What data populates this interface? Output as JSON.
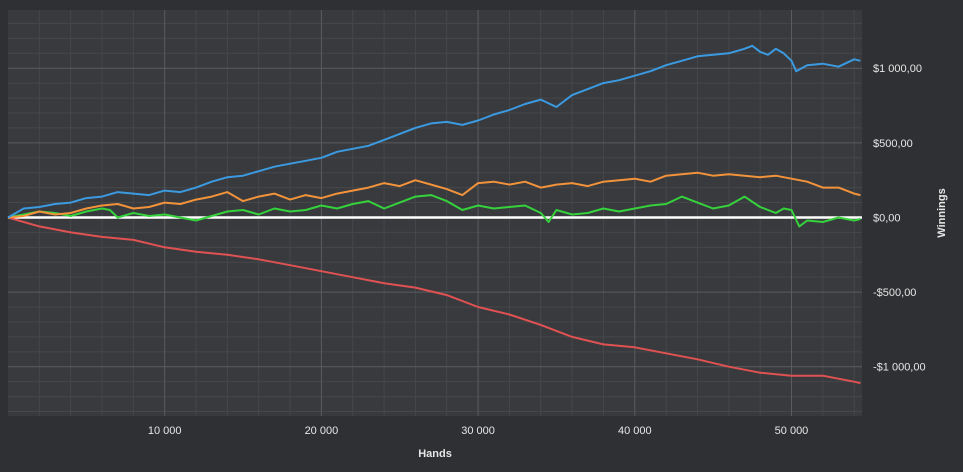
{
  "chart_data": {
    "type": "line",
    "xlabel": "Hands",
    "ylabel": "Winnings",
    "xlim": [
      0,
      54500
    ],
    "ylim": [
      -1330,
      1390
    ],
    "grid": true,
    "x_ticks": [
      {
        "value": 10000,
        "label": "10 000"
      },
      {
        "value": 20000,
        "label": "20 000"
      },
      {
        "value": 30000,
        "label": "30 000"
      },
      {
        "value": 40000,
        "label": "40 000"
      },
      {
        "value": 50000,
        "label": "50 000"
      }
    ],
    "y_ticks": [
      {
        "value": 1000,
        "label": "$1 000,00"
      },
      {
        "value": 500,
        "label": "$500,00"
      },
      {
        "value": 0,
        "label": "$0,00"
      },
      {
        "value": -500,
        "label": "-$500,00"
      },
      {
        "value": -1000,
        "label": "-$1 000,00"
      }
    ],
    "zero_line_color": "#ffffff",
    "colors": {
      "background": "#2f3033",
      "plot_background": "#383a3e",
      "grid_major": "#5a5c60",
      "grid_minor": "#45474b",
      "text": "#e6e6e6"
    },
    "series": [
      {
        "color": "#3b9ae0",
        "x": [
          0,
          1000,
          2000,
          3000,
          4000,
          5000,
          6000,
          7000,
          8000,
          9000,
          10000,
          11000,
          12000,
          13000,
          14000,
          15000,
          16000,
          17000,
          18000,
          19000,
          20000,
          21000,
          22000,
          23000,
          24000,
          25000,
          26000,
          27000,
          28000,
          29000,
          30000,
          31000,
          32000,
          33000,
          34000,
          35000,
          36000,
          37000,
          38000,
          39000,
          40000,
          41000,
          42000,
          43000,
          44000,
          45000,
          46000,
          47000,
          47500,
          48000,
          48500,
          49000,
          49500,
          50000,
          50300,
          51000,
          52000,
          53000,
          54000,
          54400
        ],
        "y": [
          0,
          60,
          70,
          90,
          100,
          130,
          140,
          170,
          160,
          150,
          180,
          170,
          200,
          240,
          270,
          280,
          310,
          340,
          360,
          380,
          400,
          440,
          460,
          480,
          520,
          560,
          600,
          630,
          640,
          620,
          650,
          690,
          720,
          760,
          790,
          740,
          820,
          860,
          900,
          920,
          950,
          980,
          1020,
          1050,
          1080,
          1090,
          1100,
          1130,
          1150,
          1110,
          1090,
          1130,
          1100,
          1050,
          980,
          1020,
          1030,
          1010,
          1060,
          1050
        ]
      },
      {
        "color": "#f2933b",
        "x": [
          0,
          1000,
          2000,
          3000,
          4000,
          5000,
          6000,
          7000,
          8000,
          9000,
          10000,
          11000,
          12000,
          13000,
          14000,
          15000,
          16000,
          17000,
          18000,
          19000,
          20000,
          21000,
          22000,
          23000,
          24000,
          25000,
          26000,
          27000,
          28000,
          29000,
          30000,
          31000,
          32000,
          33000,
          34000,
          35000,
          36000,
          37000,
          38000,
          39000,
          40000,
          41000,
          42000,
          43000,
          44000,
          45000,
          46000,
          47000,
          48000,
          49000,
          50000,
          51000,
          52000,
          53000,
          54000,
          54400
        ],
        "y": [
          0,
          10,
          40,
          20,
          30,
          60,
          80,
          90,
          60,
          70,
          100,
          90,
          120,
          140,
          170,
          110,
          140,
          160,
          120,
          150,
          130,
          160,
          180,
          200,
          230,
          210,
          250,
          220,
          190,
          150,
          230,
          240,
          220,
          240,
          200,
          220,
          230,
          210,
          240,
          250,
          260,
          240,
          280,
          290,
          300,
          280,
          290,
          280,
          270,
          280,
          260,
          240,
          200,
          200,
          160,
          150
        ]
      },
      {
        "color": "#35d23c",
        "x": [
          0,
          1000,
          2000,
          3000,
          4000,
          5000,
          6000,
          6500,
          7000,
          8000,
          9000,
          10000,
          11000,
          12000,
          13000,
          14000,
          15000,
          16000,
          17000,
          18000,
          19000,
          20000,
          21000,
          22000,
          23000,
          24000,
          25000,
          26000,
          27000,
          28000,
          29000,
          30000,
          31000,
          32000,
          33000,
          34000,
          34500,
          35000,
          36000,
          37000,
          38000,
          39000,
          40000,
          41000,
          42000,
          43000,
          44000,
          45000,
          46000,
          47000,
          48000,
          49000,
          49500,
          50000,
          50500,
          51000,
          52000,
          53000,
          54000,
          54400
        ],
        "y": [
          0,
          20,
          40,
          30,
          10,
          40,
          60,
          50,
          0,
          30,
          10,
          20,
          0,
          -20,
          10,
          40,
          50,
          20,
          60,
          40,
          50,
          80,
          60,
          90,
          110,
          60,
          100,
          140,
          150,
          110,
          50,
          80,
          60,
          70,
          80,
          30,
          -30,
          50,
          20,
          30,
          60,
          40,
          60,
          80,
          90,
          140,
          100,
          60,
          80,
          140,
          70,
          30,
          60,
          50,
          -60,
          -20,
          -30,
          0,
          -20,
          -10
        ]
      },
      {
        "color": "#e05252",
        "x": [
          0,
          2000,
          4000,
          6000,
          8000,
          10000,
          12000,
          14000,
          16000,
          18000,
          20000,
          22000,
          24000,
          26000,
          28000,
          30000,
          32000,
          34000,
          36000,
          38000,
          40000,
          42000,
          44000,
          46000,
          48000,
          50000,
          52000,
          54000,
          54400
        ],
        "y": [
          0,
          -60,
          -100,
          -130,
          -150,
          -200,
          -230,
          -250,
          -280,
          -320,
          -360,
          -400,
          -440,
          -470,
          -520,
          -600,
          -650,
          -720,
          -800,
          -850,
          -870,
          -910,
          -950,
          -1000,
          -1040,
          -1060,
          -1060,
          -1100,
          -1110
        ]
      }
    ]
  }
}
